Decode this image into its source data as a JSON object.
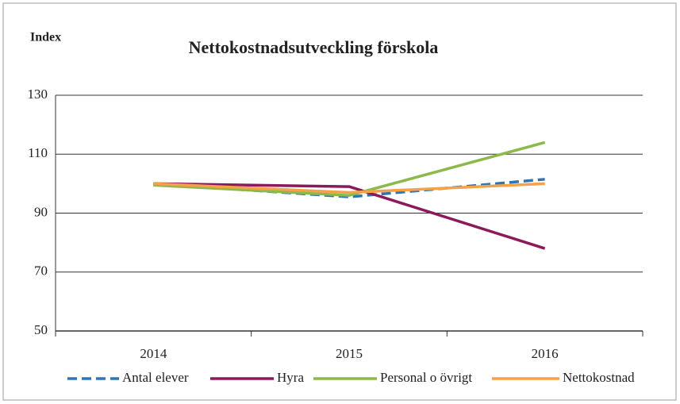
{
  "chart_data": {
    "type": "line",
    "title": "Nettokostnadsutveckling förskola",
    "y_label": "Index",
    "categories": [
      "2014",
      "2015",
      "2016"
    ],
    "series": [
      {
        "name": "Antal elever",
        "color": "#2e75b6",
        "dashed": true,
        "values": [
          100,
          95.5,
          101.5
        ]
      },
      {
        "name": "Hyra",
        "color": "#8b1a5a",
        "dashed": false,
        "values": [
          100,
          99,
          78
        ]
      },
      {
        "name": "Personal o övrigt",
        "color": "#8db84a",
        "dashed": false,
        "values": [
          99.5,
          96,
          114
        ]
      },
      {
        "name": "Nettokostnad",
        "color": "#f5a04a",
        "dashed": false,
        "values": [
          100,
          97,
          100
        ]
      }
    ],
    "ylim": [
      50,
      130
    ],
    "yticks": [
      50,
      70,
      90,
      110,
      130
    ],
    "grid": true
  }
}
